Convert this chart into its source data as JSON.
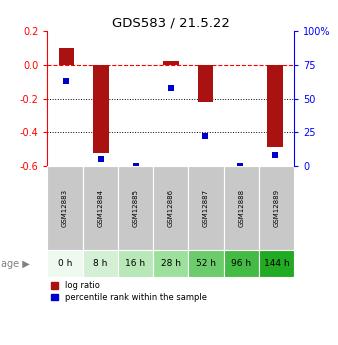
{
  "title": "GDS583 / 21.5.22",
  "samples": [
    "GSM12883",
    "GSM12884",
    "GSM12885",
    "GSM12886",
    "GSM12887",
    "GSM12888",
    "GSM12889"
  ],
  "age_labels": [
    "0 h",
    "8 h",
    "16 h",
    "28 h",
    "52 h",
    "96 h",
    "144 h"
  ],
  "log_ratio": [
    0.1,
    -0.52,
    0.0,
    0.02,
    -0.22,
    0.0,
    -0.49
  ],
  "percentile_rank": [
    63,
    5,
    0,
    58,
    22,
    0,
    8
  ],
  "bar_color": "#aa1111",
  "dot_color": "#0000cc",
  "ylim_left": [
    -0.6,
    0.2
  ],
  "ylim_right": [
    0,
    100
  ],
  "yticks_left": [
    0.2,
    0.0,
    -0.2,
    -0.4,
    -0.6
  ],
  "yticks_right": [
    100,
    75,
    50,
    25,
    0
  ],
  "ytick_labels_right": [
    "100%",
    "75",
    "50",
    "25",
    "0"
  ],
  "age_colors": [
    "#edfaed",
    "#d4f0d4",
    "#b8e8b8",
    "#9ce09c",
    "#6bcc6b",
    "#44bb44",
    "#22aa22"
  ],
  "gsm_bg_color": "#c8c8c8",
  "legend_red_label": "log ratio",
  "legend_blue_label": "percentile rank within the sample",
  "bar_width": 0.45,
  "dot_size": 25
}
